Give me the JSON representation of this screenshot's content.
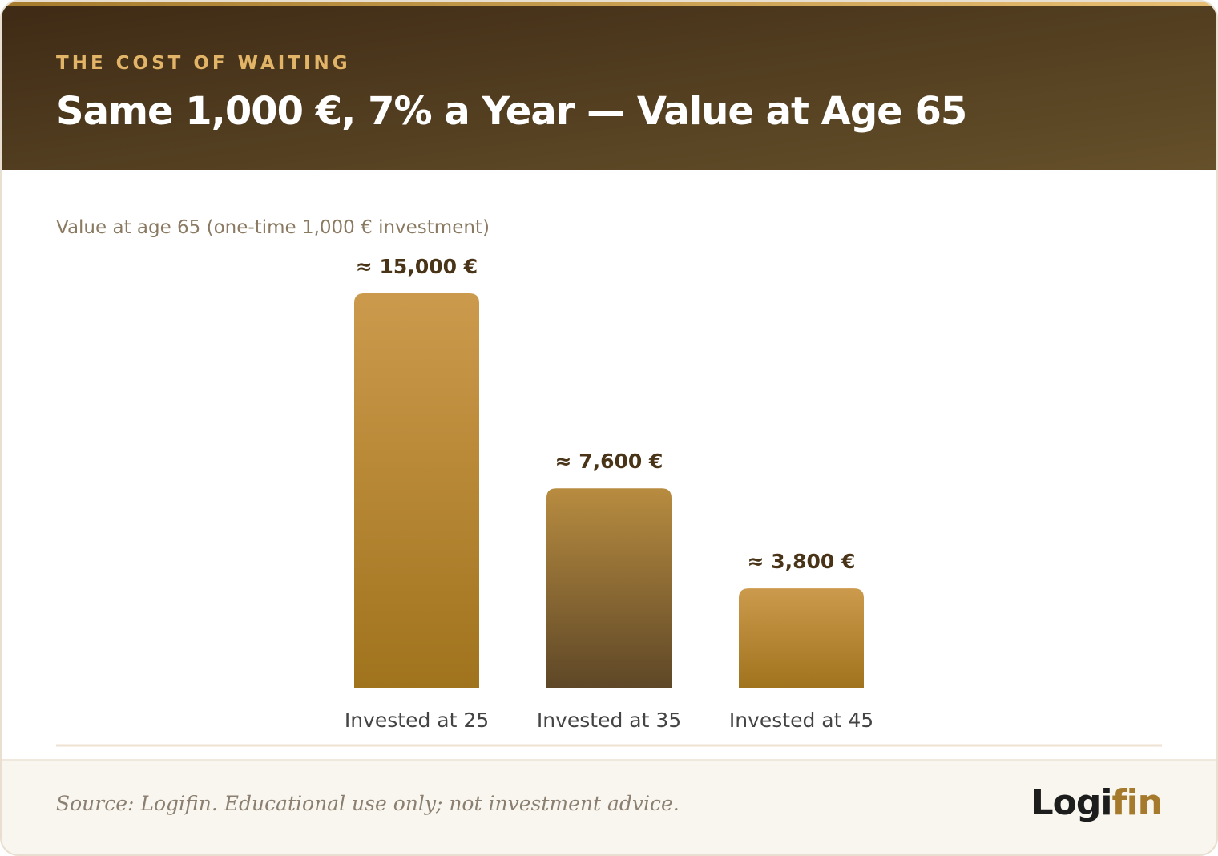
{
  "eyebrow": "THE COST OF WAITING",
  "footer": {
    "source": "Source: Logifin. Educational use only; not investment advice.",
    "logo": [
      "Logi",
      "fin"
    ]
  },
  "chart_data": {
    "type": "bar",
    "title": "Same 1,000 €, 7% a Year — Value at Age 65",
    "subtitle": "Value at age 65 (one-time 1,000 € investment)",
    "categories": [
      "Invested at 25",
      "Invested at 35",
      "Invested at 45"
    ],
    "values": [
      15000,
      7600,
      3800
    ],
    "value_labels": [
      "≈ 15,000 €",
      "≈ 7,600 €",
      "≈ 3,800 €"
    ],
    "colors": [
      {
        "top": "#cc9a4c",
        "bottom": "#a0731d"
      },
      {
        "top": "#b88c40",
        "bottom": "#5e4727"
      },
      {
        "top": "#cc9a4c",
        "bottom": "#a0731d"
      }
    ]
  }
}
